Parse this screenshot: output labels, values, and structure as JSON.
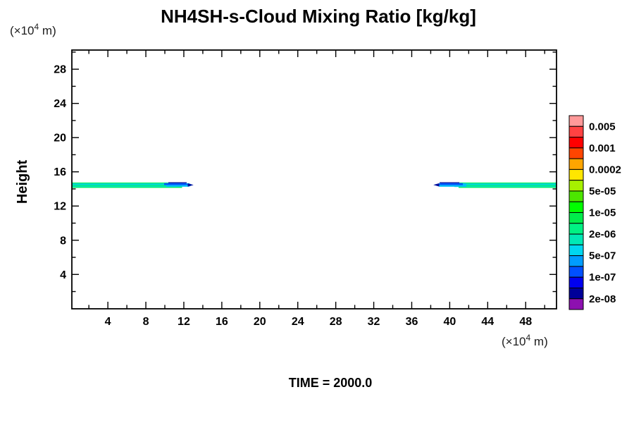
{
  "title": "NH4SH-s-Cloud Mixing Ratio [kg/kg]",
  "time_label": "TIME = 2000.0",
  "axes": {
    "y_label": "Height",
    "unit_prefix": "(×10",
    "unit_exponent": "4",
    "unit_suffix": " m)",
    "x_ticks": [
      4,
      8,
      12,
      16,
      20,
      24,
      28,
      32,
      36,
      40,
      44,
      48
    ],
    "y_ticks": [
      4,
      8,
      12,
      16,
      20,
      24,
      28
    ]
  },
  "colorbar": {
    "labels": [
      "0.005",
      "0.001",
      "0.0002",
      "5e-05",
      "1e-05",
      "2e-06",
      "5e-07",
      "1e-07",
      "2e-08"
    ],
    "colors": [
      "#ff9999",
      "#ff4242",
      "#ff0000",
      "#ff4500",
      "#ffa500",
      "#ffe600",
      "#a6f000",
      "#4ce600",
      "#00ff00",
      "#00ed4a",
      "#00f283",
      "#00e9b5",
      "#00d7f0",
      "#009cff",
      "#0050ff",
      "#0000f0",
      "#000099",
      "#8d10b0"
    ]
  },
  "band_colors": {
    "green": "#00ef62",
    "cyan_light": "#00d2e8",
    "core_green": "#00ec90",
    "turquoise": "#00e2c4",
    "tip_cyan": "#00c0f8",
    "tip_blue": "#0057ff",
    "tip_navy": "#000d9e"
  },
  "chart_data": {
    "type": "heatmap",
    "subtype": "filled-contour",
    "title": "NH4SH-s-Cloud Mixing Ratio [kg/kg]",
    "xlabel": "(×10^4 m)",
    "ylabel": "Height (×10^4 m)",
    "xlim": [
      0,
      51.3
    ],
    "ylim": [
      0,
      30.3
    ],
    "x_ticks": [
      4,
      8,
      12,
      16,
      20,
      24,
      28,
      32,
      36,
      40,
      44,
      48
    ],
    "y_ticks": [
      4,
      8,
      12,
      16,
      20,
      24,
      28
    ],
    "grid": false,
    "legend_position": "right",
    "legend_levels": [
      "0.005",
      "0.001",
      "0.0002",
      "5e-05",
      "1e-05",
      "2e-06",
      "5e-07",
      "1e-07",
      "2e-08"
    ],
    "legend_colors_top_to_bottom": [
      "#ff9999",
      "#ff4242",
      "#ff0000",
      "#ff4500",
      "#ffa500",
      "#ffe600",
      "#a6f000",
      "#4ce600",
      "#00ff00",
      "#00ed4a",
      "#00f283",
      "#00e9b5",
      "#00d7f0",
      "#009cff",
      "#0050ff",
      "#0000f0",
      "#000099",
      "#8d10b0"
    ],
    "annotations": [
      "TIME = 2000.0"
    ],
    "features": [
      {
        "name": "cloud-band-left",
        "height_center": 14.45,
        "thickness": 0.65,
        "x_range": [
          0,
          13.0
        ],
        "core_value": "~1e-06 to 2e-06 (turquoise with green edges)",
        "edge": "tapers to ~5e-07 / 1e-07 (cyan, blue, navy) at right tip x≈10-13"
      },
      {
        "name": "cloud-band-right",
        "height_center": 14.45,
        "thickness": 0.65,
        "x_range": [
          38.3,
          51.3
        ],
        "core_value": "~1e-06 to 2e-06 (turquoise with green edges)",
        "edge": "tapers to ~5e-07 / 1e-07 (cyan, blue, navy) at left tip x≈38.3-41.5"
      }
    ]
  }
}
